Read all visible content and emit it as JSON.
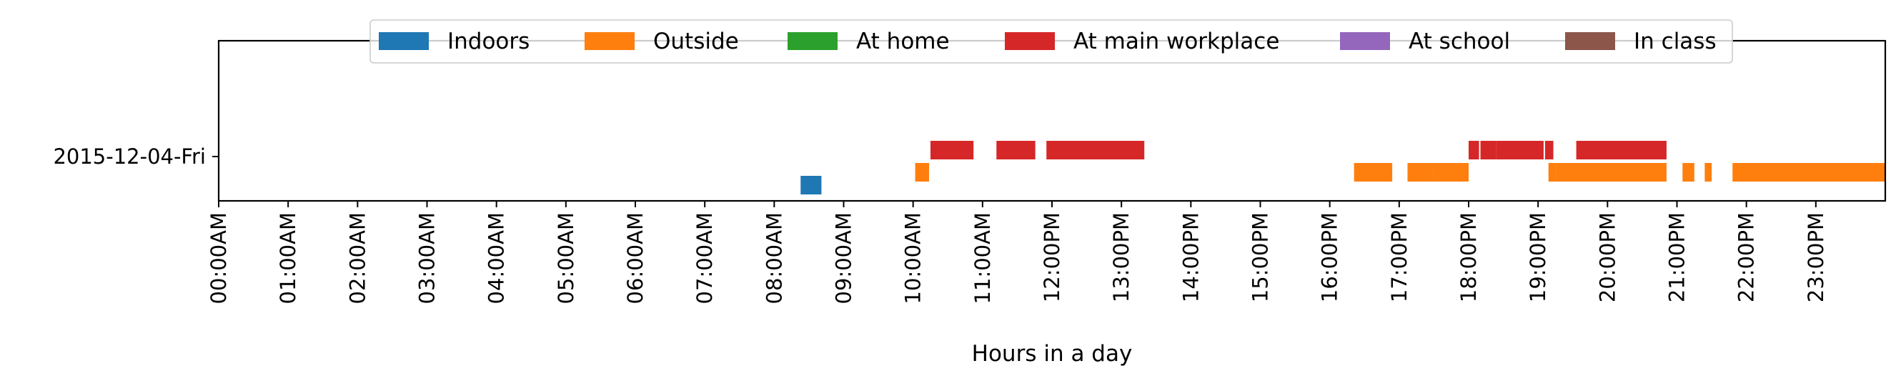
{
  "chart_data": {
    "type": "timeline",
    "xlabel": "Hours in a day",
    "x_unit": "hour of day",
    "xlim": [
      0,
      24
    ],
    "x_ticks": [
      0,
      1,
      2,
      3,
      4,
      5,
      6,
      7,
      8,
      9,
      10,
      11,
      12,
      13,
      14,
      15,
      16,
      17,
      18,
      19,
      20,
      21,
      22,
      23
    ],
    "x_tick_labels": [
      "00:00AM",
      "01:00AM",
      "02:00AM",
      "03:00AM",
      "04:00AM",
      "05:00AM",
      "06:00AM",
      "07:00AM",
      "08:00AM",
      "09:00AM",
      "10:00AM",
      "11:00AM",
      "12:00PM",
      "13:00PM",
      "14:00PM",
      "15:00PM",
      "16:00PM",
      "17:00PM",
      "18:00PM",
      "19:00PM",
      "20:00PM",
      "21:00PM",
      "22:00PM",
      "23:00PM"
    ],
    "y_tick_labels": [
      "2015-12-04-Fri"
    ],
    "legend_position": "top-center",
    "series": [
      {
        "name": "Indoors",
        "color": "#1f77b4",
        "lane": 0,
        "intervals": [
          [
            8.38,
            8.68
          ]
        ]
      },
      {
        "name": "Outside",
        "color": "#ff7f0e",
        "lane": 1,
        "intervals": [
          [
            10.03,
            10.23
          ],
          [
            16.35,
            16.9
          ],
          [
            17.12,
            17.48
          ],
          [
            17.48,
            18.0
          ],
          [
            19.15,
            19.26
          ],
          [
            19.26,
            20.85
          ],
          [
            21.08,
            21.25
          ],
          [
            21.4,
            21.5
          ],
          [
            21.8,
            24.0
          ]
        ]
      },
      {
        "name": "At home",
        "color": "#2ca02c",
        "lane": 2,
        "intervals": []
      },
      {
        "name": "At main workplace",
        "color": "#d62728",
        "lane": 2,
        "intervals": [
          [
            10.25,
            10.87
          ],
          [
            11.2,
            11.76
          ],
          [
            11.92,
            13.33
          ],
          [
            18.0,
            18.15
          ],
          [
            18.17,
            18.4
          ],
          [
            18.4,
            19.08
          ],
          [
            19.1,
            19.22
          ],
          [
            19.55,
            20.85
          ]
        ]
      },
      {
        "name": "At school",
        "color": "#9467bd",
        "lane": 3,
        "intervals": []
      },
      {
        "name": "In class",
        "color": "#8c564b",
        "lane": 3,
        "intervals": []
      }
    ]
  }
}
